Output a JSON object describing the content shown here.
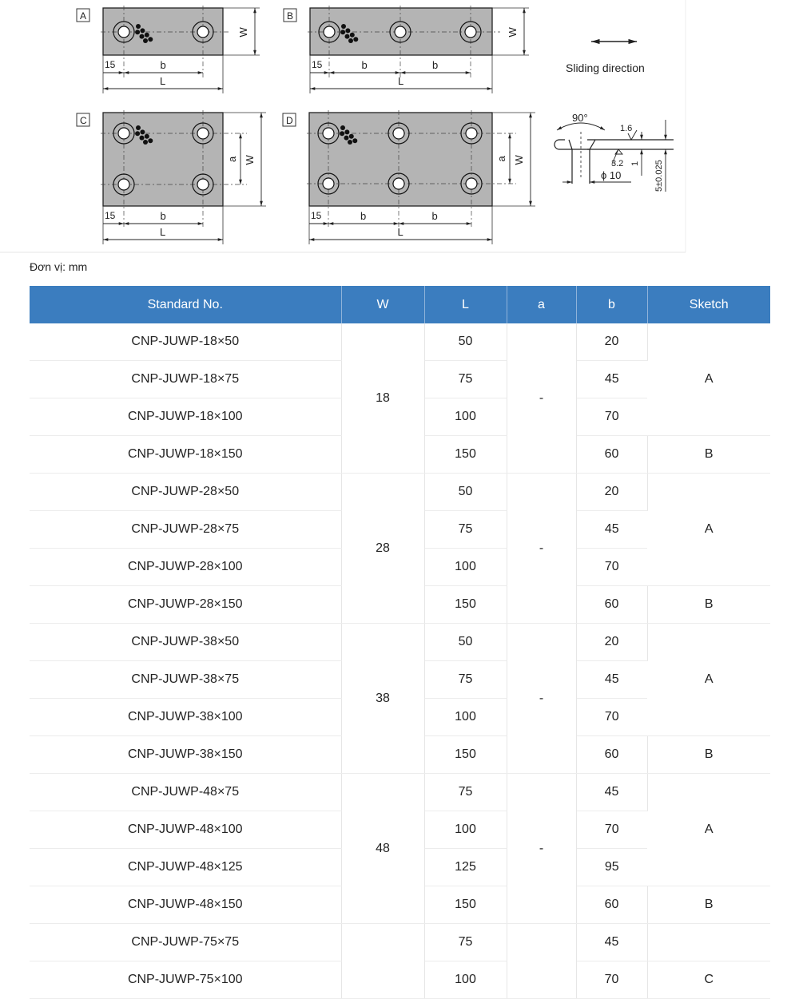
{
  "drawings": {
    "sketch_labels": [
      "A",
      "B",
      "C",
      "D"
    ],
    "dim_15": "15",
    "dim_b": "b",
    "dim_L": "L",
    "dim_W": "W",
    "dim_a": "a",
    "sliding_direction": "Sliding direction",
    "detail": {
      "angle": "90°",
      "roughness_top": "1.6",
      "roughness_bottom": "3.2",
      "diameter": "ϕ 10",
      "depth": "1",
      "thickness": "5±0.025"
    }
  },
  "unit_label": "Đơn vị: mm",
  "table": {
    "headers": [
      "Standard No.",
      "W",
      "L",
      "a",
      "b",
      "Sketch"
    ],
    "groups": [
      {
        "w": "18",
        "a": "-",
        "rows": [
          {
            "no": "CNP-JUWP-18×50",
            "L": "50",
            "b": "20"
          },
          {
            "no": "CNP-JUWP-18×75",
            "L": "75",
            "b": "45"
          },
          {
            "no": "CNP-JUWP-18×100",
            "L": "100",
            "b": "70"
          },
          {
            "no": "CNP-JUWP-18×150",
            "L": "150",
            "b": "60"
          }
        ],
        "sketches": [
          {
            "label": "A",
            "span": 3
          },
          {
            "label": "B",
            "span": 1
          }
        ]
      },
      {
        "w": "28",
        "a": "-",
        "rows": [
          {
            "no": "CNP-JUWP-28×50",
            "L": "50",
            "b": "20"
          },
          {
            "no": "CNP-JUWP-28×75",
            "L": "75",
            "b": "45"
          },
          {
            "no": "CNP-JUWP-28×100",
            "L": "100",
            "b": "70"
          },
          {
            "no": "CNP-JUWP-28×150",
            "L": "150",
            "b": "60"
          }
        ],
        "sketches": [
          {
            "label": "A",
            "span": 3
          },
          {
            "label": "B",
            "span": 1
          }
        ]
      },
      {
        "w": "38",
        "a": "-",
        "rows": [
          {
            "no": "CNP-JUWP-38×50",
            "L": "50",
            "b": "20"
          },
          {
            "no": "CNP-JUWP-38×75",
            "L": "75",
            "b": "45"
          },
          {
            "no": "CNP-JUWP-38×100",
            "L": "100",
            "b": "70"
          },
          {
            "no": "CNP-JUWP-38×150",
            "L": "150",
            "b": "60"
          }
        ],
        "sketches": [
          {
            "label": "A",
            "span": 3
          },
          {
            "label": "B",
            "span": 1
          }
        ]
      },
      {
        "w": "48",
        "a": "-",
        "rows": [
          {
            "no": "CNP-JUWP-48×75",
            "L": "75",
            "b": "45"
          },
          {
            "no": "CNP-JUWP-48×100",
            "L": "100",
            "b": "70"
          },
          {
            "no": "CNP-JUWP-48×125",
            "L": "125",
            "b": "95"
          },
          {
            "no": "CNP-JUWP-48×150",
            "L": "150",
            "b": "60"
          }
        ],
        "sketches": [
          {
            "label": "A",
            "span": 3
          },
          {
            "label": "B",
            "span": 1
          }
        ]
      },
      {
        "w": "",
        "a": "",
        "rows": [
          {
            "no": "CNP-JUWP-75×75",
            "L": "75",
            "b": "45"
          },
          {
            "no": "CNP-JUWP-75×100",
            "L": "100",
            "b": "70"
          }
        ],
        "sketches": [
          {
            "label": "",
            "span": 1
          },
          {
            "label": "C",
            "span": 1
          }
        ]
      }
    ]
  }
}
